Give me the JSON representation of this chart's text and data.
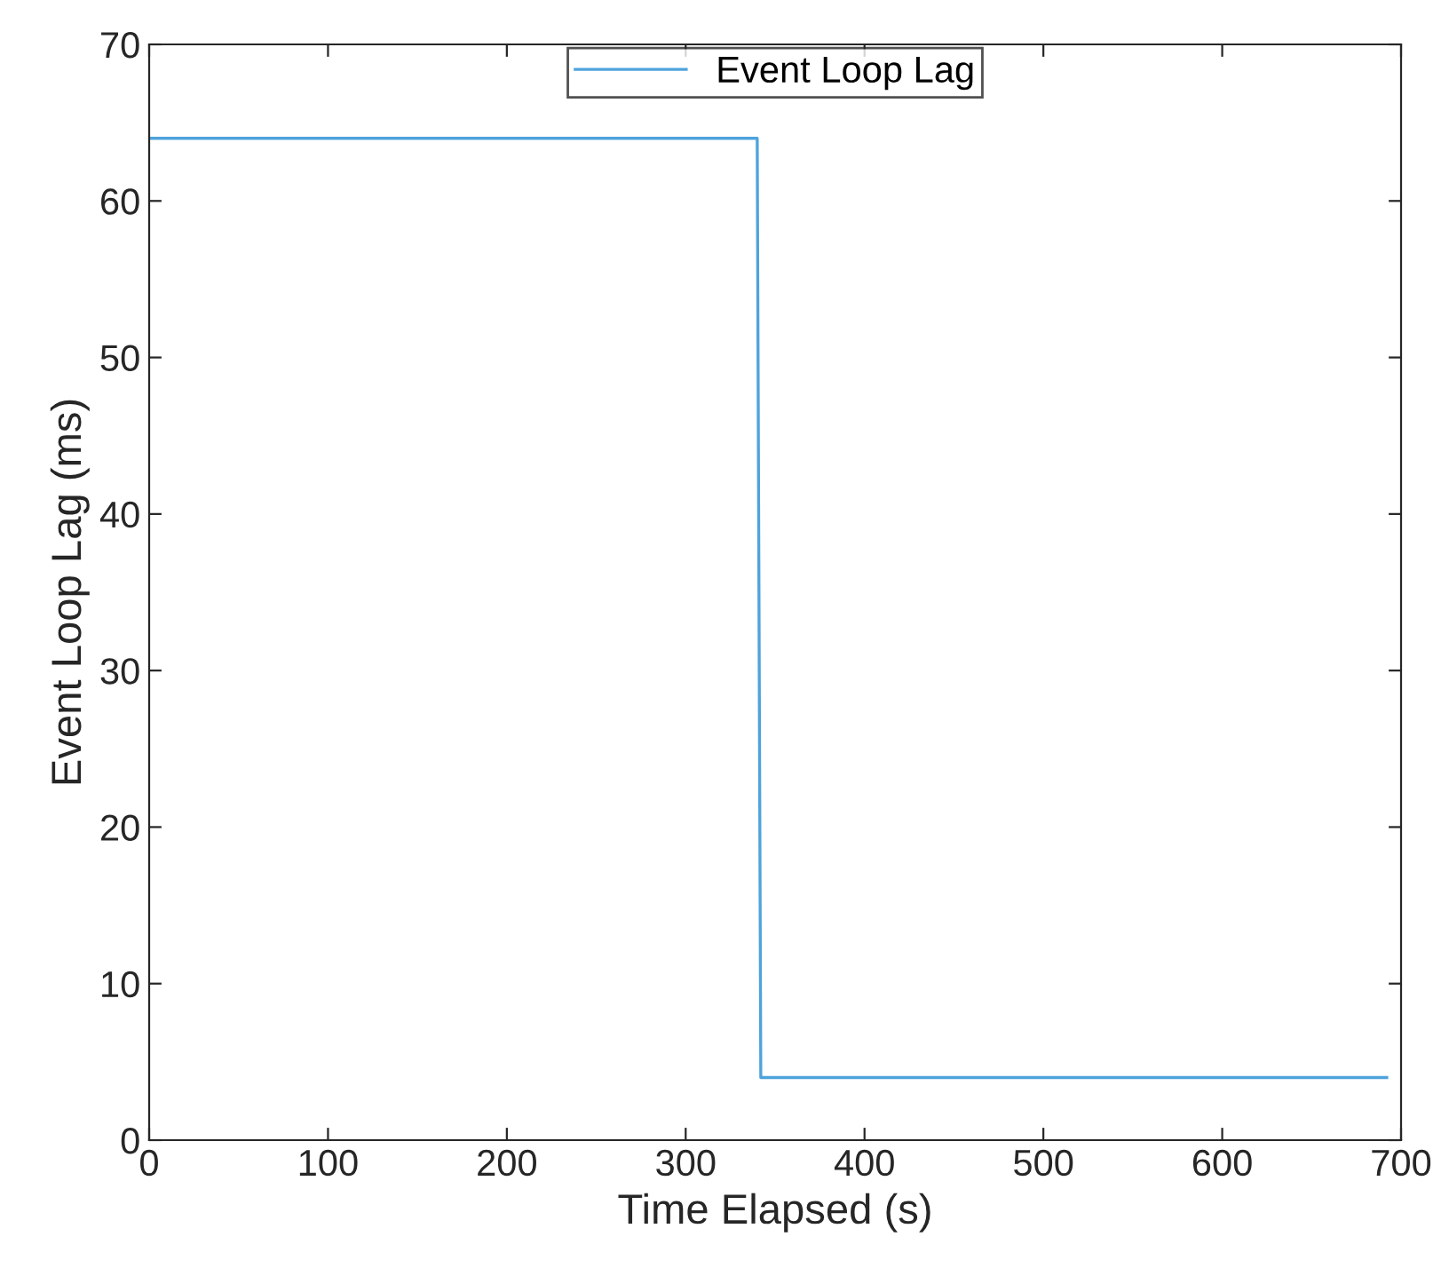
{
  "chart_data": {
    "type": "line",
    "xlabel": "Time Elapsed (s)",
    "ylabel": "Event Loop Lag (ms)",
    "series": [
      {
        "name": "Event Loop Lag",
        "color": "#4fa3dc",
        "x": [
          0,
          340,
          342,
          692
        ],
        "values": [
          64,
          64,
          4,
          4
        ]
      }
    ],
    "xlim": [
      0,
      700
    ],
    "xticks": [
      0,
      100,
      200,
      300,
      400,
      500,
      600,
      700
    ],
    "ylim": [
      0,
      70
    ],
    "yticks": [
      0,
      10,
      20,
      30,
      40,
      50,
      60,
      70
    ],
    "legend": "top",
    "grid": false,
    "marker": "none",
    "line_style": "solid"
  }
}
